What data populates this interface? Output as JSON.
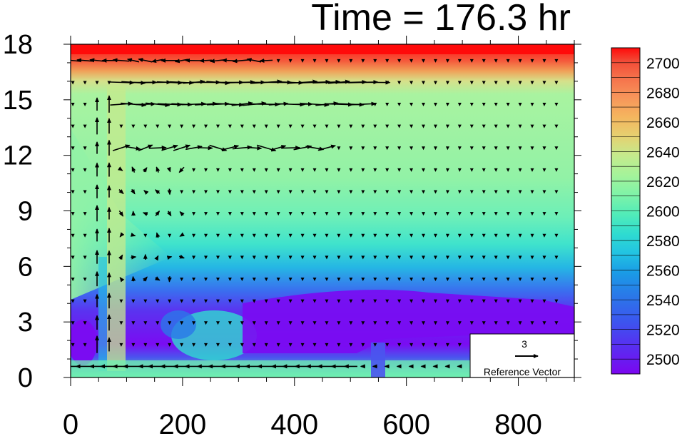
{
  "chart_data": {
    "type": "heatmap",
    "title": "Time = 176.3 hr",
    "xlabel": "",
    "ylabel": "",
    "x_ticks": [
      0,
      200,
      400,
      600,
      800
    ],
    "y_ticks": [
      0,
      3,
      6,
      9,
      12,
      15,
      18
    ],
    "xlim": [
      0,
      900
    ],
    "ylim": [
      0,
      18
    ],
    "colorbar": {
      "labels": [
        2500,
        2520,
        2540,
        2560,
        2580,
        2600,
        2620,
        2640,
        2660,
        2680,
        2700
      ],
      "range": [
        2490,
        2710
      ],
      "colors": [
        "#7b07f0",
        "#5a2cf0",
        "#3c55ef",
        "#2a78e8",
        "#1a9be6",
        "#22c3e2",
        "#2fdcd0",
        "#52ecb8",
        "#7ff3a8",
        "#a5f39a",
        "#c5ea8c",
        "#e6d070",
        "#f5b45e",
        "#f7945a",
        "#f5704a",
        "#f24a36",
        "#ee2a26",
        "#ff0a0a"
      ]
    },
    "reference_vector": {
      "magnitude": "3",
      "label": "Reference Vector"
    }
  },
  "colors": {
    "arrow": "#000000",
    "frame": "#000000"
  }
}
